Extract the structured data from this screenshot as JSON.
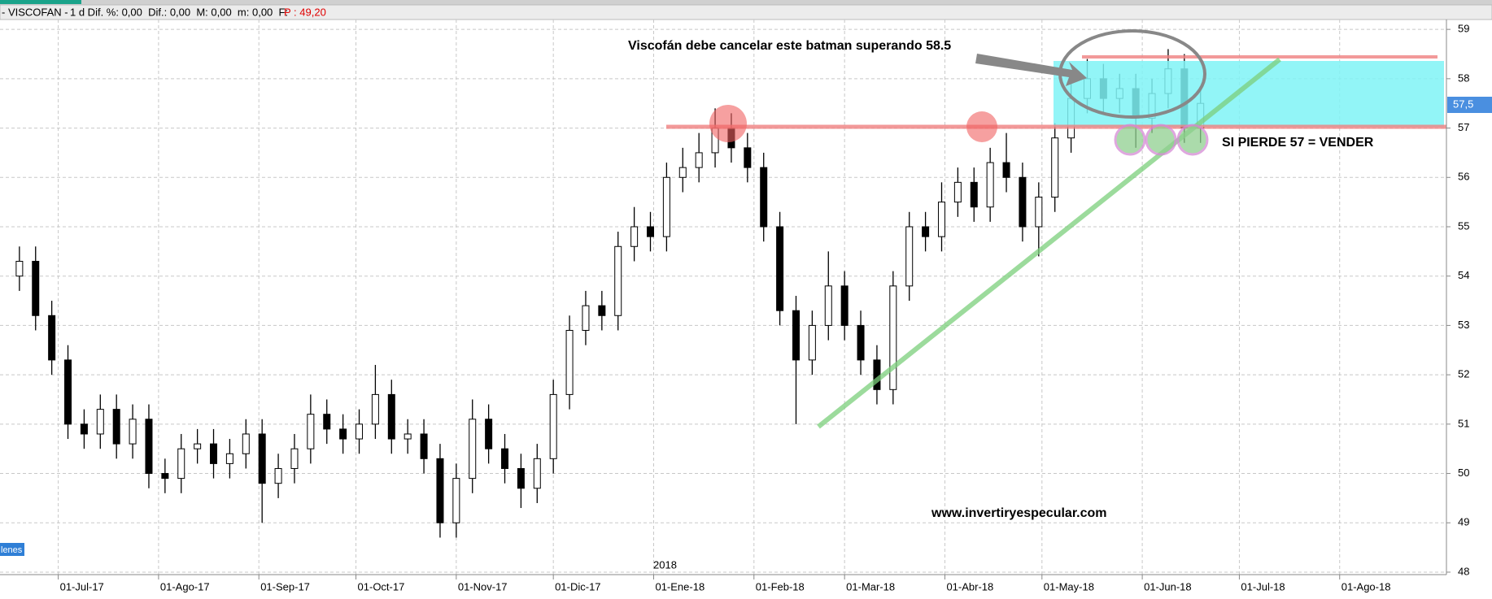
{
  "chart_data": {
    "type": "candlestick",
    "header": {
      "symbol": "- VISCOFAN -",
      "stats": "1 d Dif. %: 0,00  Dif.: 0,00  M: 0,00  m: 0,00  F:",
      "price": "P : 49,20"
    },
    "annotations": {
      "title": "Viscofán debe cancelar este batman superando 58.5",
      "signal": "SI PIERDE 57 = VENDER",
      "website": "www.invertiryespecular.com",
      "year": "2018",
      "last_price": "57,5",
      "side_tab": "lenes"
    },
    "x": [
      "2017-06-19",
      "2017-06-24",
      "2017-06-29",
      "2017-07-04",
      "2017-07-09",
      "2017-07-14",
      "2017-07-19",
      "2017-07-24",
      "2017-07-29",
      "2017-08-03",
      "2017-08-08",
      "2017-08-13",
      "2017-08-18",
      "2017-08-23",
      "2017-08-28",
      "2017-09-02",
      "2017-09-07",
      "2017-09-12",
      "2017-09-17",
      "2017-09-22",
      "2017-09-27",
      "2017-10-02",
      "2017-10-07",
      "2017-10-12",
      "2017-10-17",
      "2017-10-22",
      "2017-10-27",
      "2017-11-01",
      "2017-11-06",
      "2017-11-11",
      "2017-11-16",
      "2017-11-21",
      "2017-11-26",
      "2017-12-01",
      "2017-12-06",
      "2017-12-11",
      "2017-12-16",
      "2017-12-21",
      "2017-12-26",
      "2017-12-31",
      "2018-01-05",
      "2018-01-10",
      "2018-01-15",
      "2018-01-20",
      "2018-01-25",
      "2018-01-30",
      "2018-02-04",
      "2018-02-09",
      "2018-02-14",
      "2018-02-19",
      "2018-02-24",
      "2018-03-01",
      "2018-03-06",
      "2018-03-11",
      "2018-03-16",
      "2018-03-21",
      "2018-03-26",
      "2018-03-31",
      "2018-04-05",
      "2018-04-10",
      "2018-04-15",
      "2018-04-20",
      "2018-04-25",
      "2018-04-30",
      "2018-05-05",
      "2018-05-10",
      "2018-05-15",
      "2018-05-20",
      "2018-05-25",
      "2018-05-30",
      "2018-06-04",
      "2018-06-09",
      "2018-06-14",
      "2018-06-19"
    ],
    "open": [
      54.0,
      54.3,
      53.2,
      52.3,
      51.0,
      50.8,
      51.3,
      50.6,
      51.1,
      50.0,
      49.9,
      50.5,
      50.6,
      50.2,
      50.4,
      50.8,
      49.8,
      50.1,
      50.5,
      51.2,
      50.9,
      50.7,
      51.0,
      51.6,
      50.7,
      50.8,
      50.3,
      49.0,
      49.9,
      51.1,
      50.5,
      50.1,
      49.7,
      50.3,
      51.6,
      52.9,
      53.4,
      53.2,
      54.6,
      55.0,
      54.8,
      56.0,
      56.2,
      56.5,
      57.0,
      56.6,
      56.2,
      55.0,
      53.3,
      52.3,
      53.0,
      53.8,
      53.0,
      52.3,
      51.7,
      53.8,
      55.0,
      54.8,
      55.5,
      55.9,
      55.4,
      56.3,
      56.0,
      55.0,
      55.6,
      56.8,
      57.6,
      58.0,
      57.6,
      57.8,
      57.2,
      57.7,
      58.2,
      57.0
    ],
    "high": [
      54.6,
      54.6,
      53.5,
      52.6,
      51.3,
      51.6,
      51.6,
      51.4,
      51.4,
      50.3,
      50.8,
      50.9,
      50.9,
      50.7,
      51.1,
      51.1,
      50.4,
      50.8,
      51.6,
      51.5,
      51.2,
      51.3,
      52.2,
      51.9,
      51.1,
      51.1,
      50.6,
      50.2,
      51.5,
      51.4,
      50.8,
      50.4,
      50.6,
      51.9,
      53.2,
      53.7,
      53.7,
      54.9,
      55.4,
      55.3,
      56.3,
      56.6,
      56.9,
      57.4,
      57.3,
      56.9,
      56.5,
      55.3,
      53.6,
      53.3,
      54.5,
      54.1,
      53.3,
      52.6,
      54.1,
      55.3,
      55.3,
      55.9,
      56.2,
      56.2,
      56.6,
      56.9,
      56.3,
      55.9,
      57.1,
      57.9,
      58.4,
      58.3,
      58.1,
      58.1,
      58.0,
      58.6,
      58.5,
      57.8
    ],
    "low": [
      53.7,
      52.9,
      52.0,
      50.7,
      50.5,
      50.5,
      50.3,
      50.3,
      49.7,
      49.6,
      49.6,
      50.2,
      49.9,
      49.9,
      50.1,
      49.0,
      49.5,
      49.8,
      50.2,
      50.6,
      50.4,
      50.4,
      50.7,
      50.4,
      50.4,
      50.0,
      48.7,
      48.7,
      49.6,
      50.2,
      49.8,
      49.3,
      49.4,
      50.0,
      51.3,
      52.6,
      52.9,
      52.9,
      54.3,
      54.5,
      54.5,
      55.7,
      55.9,
      56.2,
      56.3,
      55.9,
      54.7,
      53.0,
      51.0,
      52.0,
      52.7,
      52.7,
      52.0,
      51.4,
      51.4,
      53.5,
      54.5,
      54.5,
      55.2,
      55.1,
      55.1,
      55.7,
      54.7,
      54.4,
      55.3,
      56.5,
      57.3,
      57.3,
      57.3,
      56.6,
      56.9,
      57.4,
      56.7,
      56.7
    ],
    "close": [
      54.3,
      53.2,
      52.3,
      51.0,
      50.8,
      51.3,
      50.6,
      51.1,
      50.0,
      49.9,
      50.5,
      50.6,
      50.2,
      50.4,
      50.8,
      49.8,
      50.1,
      50.5,
      51.2,
      50.9,
      50.7,
      51.0,
      51.6,
      50.7,
      50.8,
      50.3,
      49.0,
      49.9,
      51.1,
      50.5,
      50.1,
      49.7,
      50.3,
      51.6,
      52.9,
      53.4,
      53.2,
      54.6,
      55.0,
      54.8,
      56.0,
      56.2,
      56.5,
      57.0,
      56.6,
      56.2,
      55.0,
      53.3,
      52.3,
      53.0,
      53.8,
      53.0,
      52.3,
      51.7,
      53.8,
      55.0,
      54.8,
      55.5,
      55.9,
      55.4,
      56.3,
      56.0,
      55.0,
      55.6,
      56.8,
      57.6,
      58.0,
      57.6,
      57.8,
      57.2,
      57.7,
      58.2,
      57.0,
      57.5
    ],
    "up_color": "#ffffff",
    "down_color": "#000000",
    "xlim": [
      "2017-06-13",
      "2018-09-03"
    ],
    "xticks": [
      {
        "value": "2017-07-01",
        "label": "01-Jul-17"
      },
      {
        "value": "2017-08-01",
        "label": "01-Ago-17"
      },
      {
        "value": "2017-09-01",
        "label": "01-Sep-17"
      },
      {
        "value": "2017-10-01",
        "label": "01-Oct-17"
      },
      {
        "value": "2017-11-01",
        "label": "01-Nov-17"
      },
      {
        "value": "2017-12-01",
        "label": "01-Dic-17"
      },
      {
        "value": "2018-01-01",
        "label": "01-Ene-18"
      },
      {
        "value": "2018-02-01",
        "label": "01-Feb-18"
      },
      {
        "value": "2018-03-01",
        "label": "01-Mar-18"
      },
      {
        "value": "2018-04-01",
        "label": "01-Abr-18"
      },
      {
        "value": "2018-05-01",
        "label": "01-May-18"
      },
      {
        "value": "2018-06-01",
        "label": "01-Jun-18"
      },
      {
        "value": "2018-07-01",
        "label": "01-Jul-18"
      },
      {
        "value": "2018-08-01",
        "label": "01-Ago-18"
      }
    ],
    "ylim": [
      47.95,
      59.2
    ],
    "yticks": [
      48,
      49,
      50,
      51,
      52,
      53,
      54,
      55,
      56,
      57,
      58,
      59
    ],
    "grid": true
  }
}
